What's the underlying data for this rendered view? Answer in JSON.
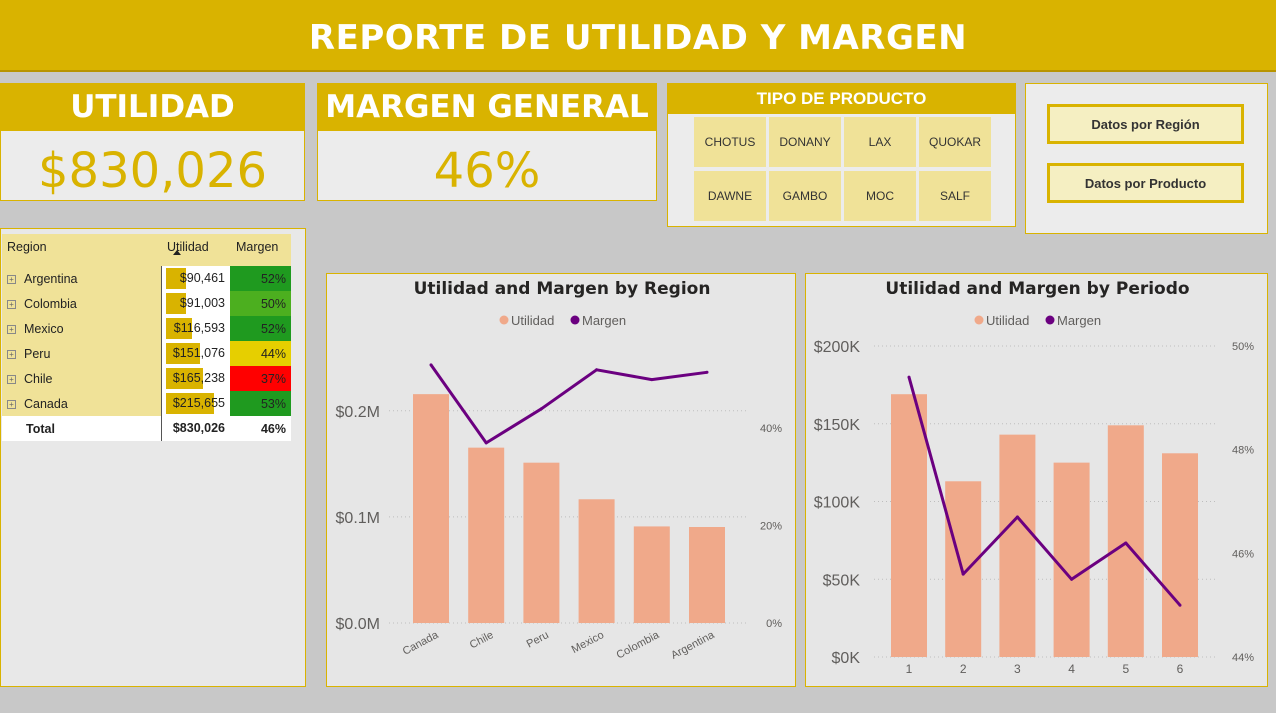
{
  "header": {
    "title": "REPORTE DE UTILIDAD Y MARGEN"
  },
  "kpis": {
    "utilidad": {
      "label": "UTILIDAD",
      "value": "$830,026"
    },
    "margen": {
      "label": "MARGEN GENERAL",
      "value": "46%"
    }
  },
  "slicer": {
    "title": "TIPO DE PRODUCTO",
    "items": [
      "CHOTUS",
      "DONANY",
      "LAX",
      "QUOKAR",
      "DAWNE",
      "GAMBO",
      "MOC",
      "SALF"
    ]
  },
  "nav": {
    "region_button": "Datos por Región",
    "producto_button": "Datos por Producto"
  },
  "table": {
    "headers": {
      "region": "Region",
      "utilidad": "Utilidad",
      "margen": "Margen"
    },
    "max_utilidad": 215655,
    "rows": [
      {
        "region": "Argentina",
        "utilidad": "$90,461",
        "utilidad_value": 90461,
        "margen": "52%",
        "color": "#1f9a1f"
      },
      {
        "region": "Colombia",
        "utilidad": "$91,003",
        "utilidad_value": 91003,
        "margen": "50%",
        "color": "#4caf1f"
      },
      {
        "region": "Mexico",
        "utilidad": "$116,593",
        "utilidad_value": 116593,
        "margen": "52%",
        "color": "#1f9a1f"
      },
      {
        "region": "Peru",
        "utilidad": "$151,076",
        "utilidad_value": 151076,
        "margen": "44%",
        "color": "#e6cf00"
      },
      {
        "region": "Chile",
        "utilidad": "$165,238",
        "utilidad_value": 165238,
        "margen": "37%",
        "color": "#ff0000"
      },
      {
        "region": "Canada",
        "utilidad": "$215,655",
        "utilidad_value": 215655,
        "margen": "53%",
        "color": "#1f9a1f"
      }
    ],
    "total": {
      "label": "Total",
      "utilidad": "$830,026",
      "margen": "46%"
    }
  },
  "chart_data": [
    {
      "type": "bar",
      "title": "Utilidad and Margen by Region",
      "legend": [
        "Utilidad",
        "Margen"
      ],
      "legend_position": "top-center",
      "categories": [
        "Canada",
        "Chile",
        "Peru",
        "Mexico",
        "Colombia",
        "Argentina"
      ],
      "series": [
        {
          "name": "Utilidad",
          "type": "bar",
          "axis": "left",
          "values": [
            215655,
            165238,
            151076,
            116593,
            91003,
            90461
          ]
        },
        {
          "name": "Margen",
          "type": "line",
          "axis": "right",
          "values": [
            53,
            37,
            44,
            52,
            50,
            51.5
          ]
        }
      ],
      "y_left": {
        "min": 0,
        "max": 0.245,
        "ticks": [
          0,
          0.1,
          0.2
        ],
        "tick_labels": [
          "$0.0M",
          "$0.1M",
          "$0.2M"
        ],
        "scale": 1000000
      },
      "y_right": {
        "min": 0,
        "max": 53.4,
        "ticks": [
          0,
          20,
          40
        ],
        "tick_labels": [
          "0%",
          "20%",
          "40%"
        ]
      },
      "colors": {
        "bar": "#f0a98a",
        "line": "#6b0080"
      },
      "grid": true
    },
    {
      "type": "bar",
      "title": "Utilidad and Margen by Periodo",
      "legend": [
        "Utilidad",
        "Margen"
      ],
      "legend_position": "top-center",
      "categories": [
        "1",
        "2",
        "3",
        "4",
        "5",
        "6"
      ],
      "series": [
        {
          "name": "Utilidad",
          "type": "bar",
          "axis": "left",
          "values": [
            169000,
            113000,
            143000,
            125000,
            149000,
            131000
          ]
        },
        {
          "name": "Margen",
          "type": "line",
          "axis": "right",
          "values": [
            49.4,
            45.6,
            46.7,
            45.5,
            46.2,
            45.0
          ]
        }
      ],
      "y_left": {
        "min": 0,
        "max": 200000,
        "ticks": [
          0,
          50000,
          100000,
          150000,
          200000
        ],
        "tick_labels": [
          "$0K",
          "$50K",
          "$100K",
          "$150K",
          "$200K"
        ]
      },
      "y_right": {
        "min": 44,
        "max": 50,
        "ticks": [
          44,
          46,
          48,
          50
        ],
        "tick_labels": [
          "44%",
          "46%",
          "48%",
          "50%"
        ]
      },
      "colors": {
        "bar": "#f0a98a",
        "line": "#6b0080"
      },
      "grid": true
    }
  ]
}
